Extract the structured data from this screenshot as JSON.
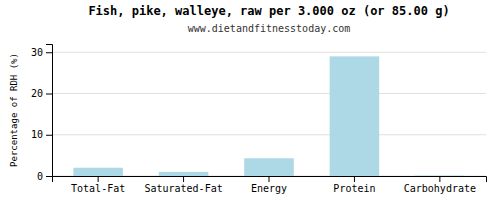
{
  "chart_data": {
    "type": "bar",
    "title": "Fish, pike, walleye, raw per 3.000 oz (or 85.00 g)",
    "subtitle": "www.dietandfitnesstoday.com",
    "categories": [
      "Total-Fat",
      "Saturated-Fat",
      "Energy",
      "Protein",
      "Carbohydrate"
    ],
    "values": [
      2.0,
      1.0,
      4.3,
      29.0,
      0.1
    ],
    "color": "#add8e6",
    "ylabel": "Percentage of RDH (%)",
    "ylim": [
      0,
      32
    ],
    "yticks": [
      0,
      10,
      20,
      30
    ],
    "grid": true
  }
}
